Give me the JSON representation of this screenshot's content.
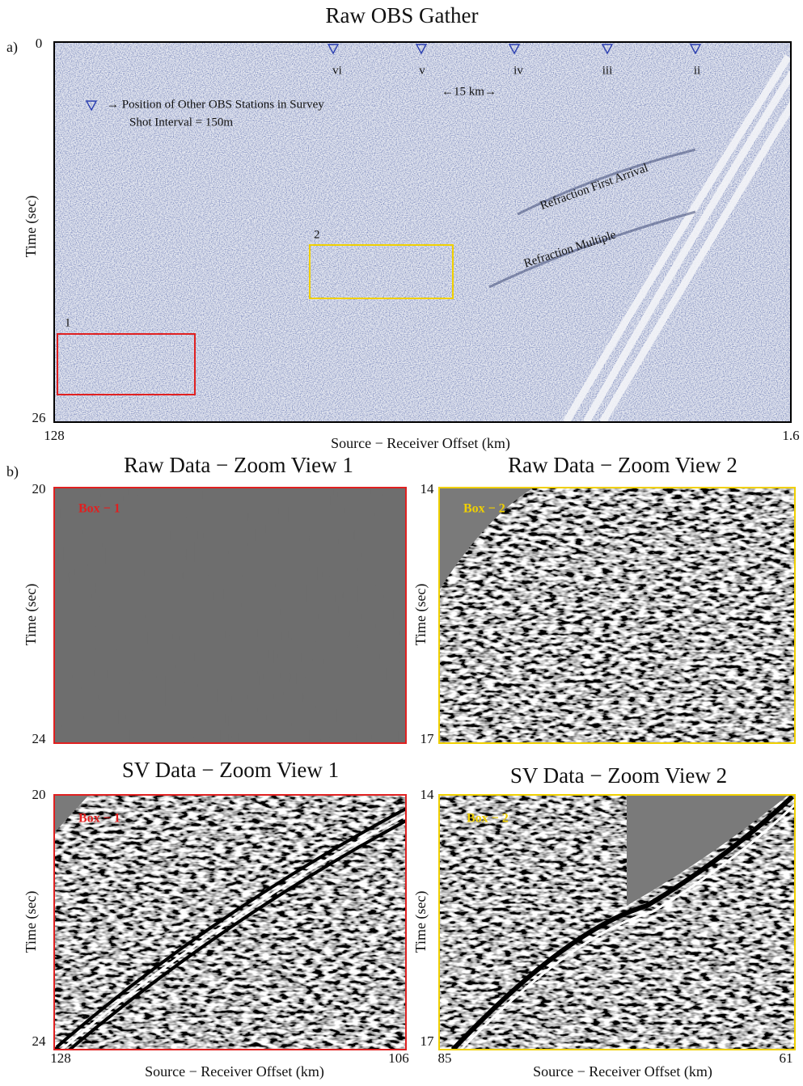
{
  "panel_a": {
    "label": "a)",
    "title": "Raw OBS Gather",
    "y_label": "Time (sec)",
    "y_ticks": [
      "0",
      "26"
    ],
    "x_ticks": [
      "128",
      "1.6"
    ],
    "x_label": "Source − Receiver Offset (km)",
    "stations": [
      "vi",
      "v",
      "iv",
      "iii",
      "ii"
    ],
    "legend": {
      "text": "→ Position of  Other OBS Stations in Survey",
      "shot_interval": "Shot Interval =  150m"
    },
    "scale": "←15 km→",
    "annotations": [
      "Refraction First Arrival",
      "Refraction Multiple"
    ],
    "boxes": [
      "1",
      "2"
    ]
  },
  "panel_b": {
    "label": "b)",
    "views": [
      {
        "title": "Raw Data − Zoom View 1",
        "box_label": "Box − 1",
        "y_label": "Time (sec)",
        "y_ticks": [
          "20",
          "24"
        ]
      },
      {
        "title": "Raw Data − Zoom View 2",
        "box_label": "Box − 2",
        "y_label": "Time (sec)",
        "y_ticks": [
          "14",
          "17"
        ]
      },
      {
        "title": "SV Data − Zoom View 1",
        "box_label": "Box − 1",
        "y_label": "Time (sec)",
        "y_ticks": [
          "20",
          "24"
        ],
        "x_ticks": [
          "128",
          "106"
        ],
        "x_label": "Source − Receiver Offset (km)"
      },
      {
        "title": "SV Data − Zoom View 2",
        "box_label": "Box − 2",
        "y_label": "Time (sec)",
        "y_ticks": [
          "14",
          "17"
        ],
        "x_ticks": [
          "85",
          "61"
        ],
        "x_label": "Source − Receiver Offset (km)"
      }
    ]
  }
}
